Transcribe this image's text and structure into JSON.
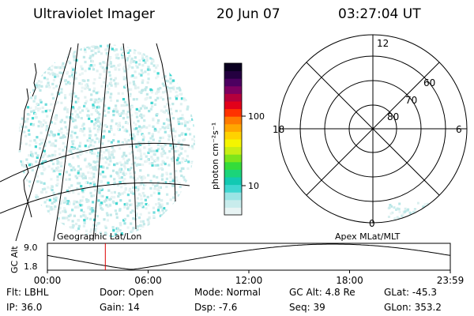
{
  "header": {
    "instrument": "Ultraviolet Imager",
    "date": "20 Jun 07",
    "time": "03:27:04 UT"
  },
  "map_left": {
    "label": "Geographic Lat/Lon"
  },
  "colorbar": {
    "unit_label": "photon cm⁻²s⁻¹",
    "ticks": [
      "100",
      "10"
    ],
    "scale": "log",
    "colors": [
      "#e8f4f4",
      "#c8ecec",
      "#9be4e4",
      "#3fd6d0",
      "#12c9b2",
      "#1bd47a",
      "#35dc3a",
      "#7ee51b",
      "#c8ee14",
      "#f5f500",
      "#ffd200",
      "#ffa600",
      "#ff7a00",
      "#ff3200",
      "#e2001a",
      "#b4003c",
      "#7e0060",
      "#4c0060",
      "#240040",
      "#0a0020"
    ]
  },
  "polar": {
    "label": "Apex MLat/MLT",
    "mlt_labels": {
      "top": "12",
      "left": "18",
      "right": "6",
      "bottom": "0"
    },
    "lat_labels": [
      "60",
      "70",
      "80"
    ]
  },
  "alt_plot": {
    "ylabel": "GC Alt",
    "yticks": [
      "9.0",
      "1.8"
    ],
    "xticks": [
      "00:00",
      "06:00",
      "12:00",
      "18:00",
      "23:59"
    ],
    "marker_time": "03:27",
    "line_color": "#000000",
    "marker_color": "#dd0000"
  },
  "status": [
    [
      {
        "k": "Flt:",
        "v": "LBHL"
      },
      {
        "k": "Door:",
        "v": "Open"
      },
      {
        "k": "Mode:",
        "v": "Normal"
      },
      {
        "k": "GC Alt:",
        "v": "4.8 Re"
      },
      {
        "k": "GLat:",
        "v": "-45.3"
      }
    ],
    [
      {
        "k": "IP:",
        "v": "36.0"
      },
      {
        "k": "Gain:",
        "v": "14"
      },
      {
        "k": "Dsp:",
        "v": "-7.6"
      },
      {
        "k": "Seq:",
        "v": "39"
      },
      {
        "k": "GLon:",
        "v": "353.2"
      }
    ]
  ]
}
